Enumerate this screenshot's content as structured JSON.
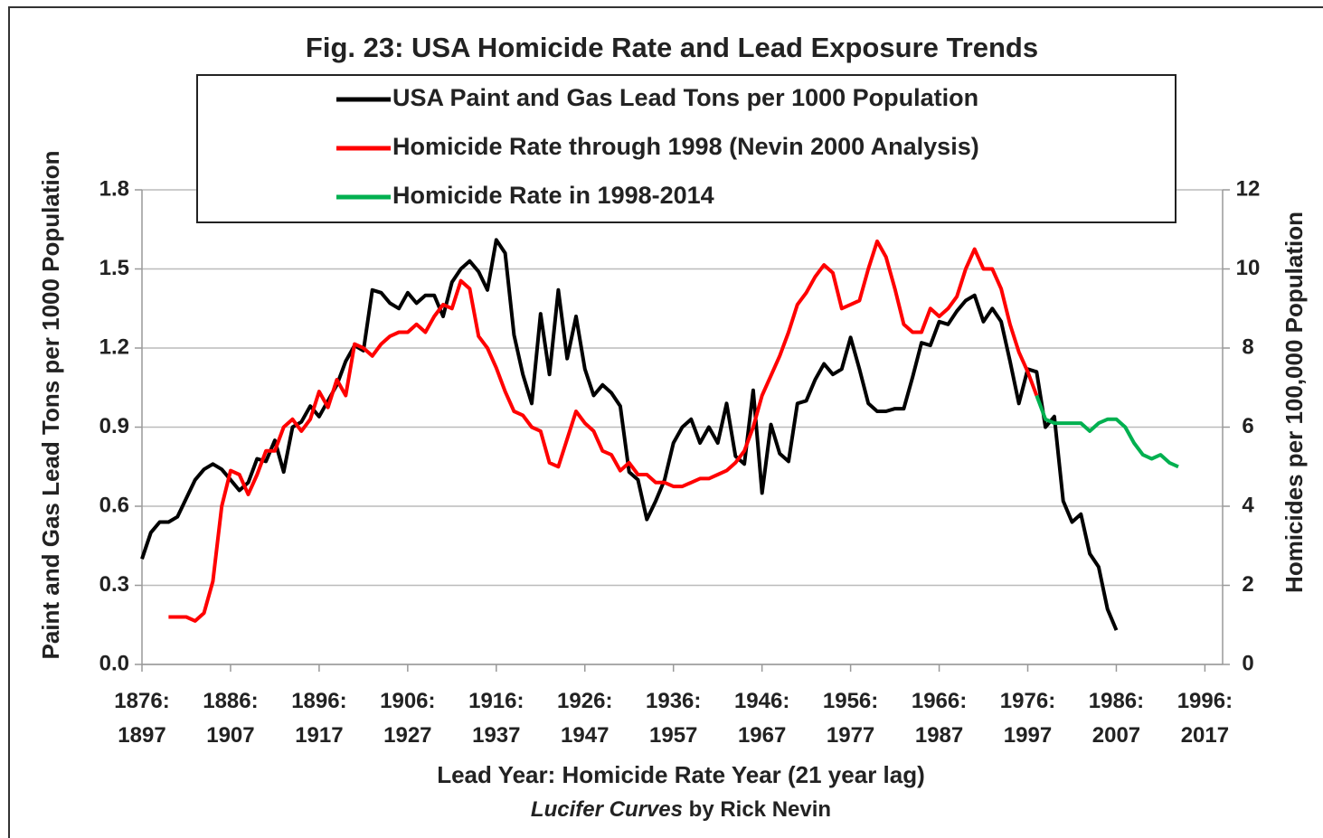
{
  "chart_data": {
    "type": "line",
    "title": "Fig. 23: USA Homicide Rate and Lead Exposure Trends",
    "xlabel": "Lead Year: Homicide Rate Year (21 year lag)",
    "credit_title": "Lucifer Curves",
    "credit": "by Rick Nevin",
    "ylabel": "Paint and Gas Lead Tons per 1000 Population",
    "y2label": "Homicides per 100,000 Population",
    "xlim": [
      1876,
      1998
    ],
    "xticks": [
      {
        "value": 1876,
        "label": "1876:\n1897"
      },
      {
        "value": 1886,
        "label": "1886:\n1907"
      },
      {
        "value": 1896,
        "label": "1896:\n1917"
      },
      {
        "value": 1906,
        "label": "1906:\n1927"
      },
      {
        "value": 1916,
        "label": "1916:\n1937"
      },
      {
        "value": 1926,
        "label": "1926:\n1947"
      },
      {
        "value": 1936,
        "label": "1936:\n1957"
      },
      {
        "value": 1946,
        "label": "1946:\n1967"
      },
      {
        "value": 1956,
        "label": "1956:\n1977"
      },
      {
        "value": 1966,
        "label": "1966:\n1987"
      },
      {
        "value": 1976,
        "label": "1976:\n1997"
      },
      {
        "value": 1986,
        "label": "1986:\n2007"
      },
      {
        "value": 1996,
        "label": "1996:\n2017"
      }
    ],
    "ylim": [
      0,
      1.8
    ],
    "yticks": [
      {
        "value": 0,
        "label": "0.0"
      },
      0.3,
      0.6,
      0.9,
      1.2,
      1.5,
      1.8
    ],
    "y2lim": [
      0,
      12
    ],
    "y2ticks": [
      0,
      2,
      4,
      6,
      8,
      10,
      12
    ],
    "grid": true,
    "x": [
      1876,
      1877,
      1878,
      1879,
      1880,
      1881,
      1882,
      1883,
      1884,
      1885,
      1886,
      1887,
      1888,
      1889,
      1890,
      1891,
      1892,
      1893,
      1894,
      1895,
      1896,
      1897,
      1898,
      1899,
      1900,
      1901,
      1902,
      1903,
      1904,
      1905,
      1906,
      1907,
      1908,
      1909,
      1910,
      1911,
      1912,
      1913,
      1914,
      1915,
      1916,
      1917,
      1918,
      1919,
      1920,
      1921,
      1922,
      1923,
      1924,
      1925,
      1926,
      1927,
      1928,
      1929,
      1930,
      1931,
      1932,
      1933,
      1934,
      1935,
      1936,
      1937,
      1938,
      1939,
      1940,
      1941,
      1942,
      1943,
      1944,
      1945,
      1946,
      1947,
      1948,
      1949,
      1950,
      1951,
      1952,
      1953,
      1954,
      1955,
      1956,
      1957,
      1958,
      1959,
      1960,
      1961,
      1962,
      1963,
      1964,
      1965,
      1966,
      1967,
      1968,
      1969,
      1970,
      1971,
      1972,
      1973,
      1974,
      1975,
      1976,
      1977,
      1978,
      1979,
      1980,
      1981,
      1982,
      1983,
      1984,
      1985,
      1986,
      1987,
      1988,
      1989,
      1990,
      1991,
      1992,
      1993
    ],
    "series": [
      {
        "name": "USA Paint and Gas Lead Tons per 1000 Population",
        "color": "#000000",
        "axis": "y",
        "values": [
          0.4,
          0.5,
          0.54,
          0.54,
          0.56,
          0.63,
          0.7,
          0.74,
          0.76,
          0.74,
          0.7,
          0.66,
          0.69,
          0.78,
          0.77,
          0.85,
          0.73,
          0.9,
          0.92,
          0.98,
          0.94,
          1.0,
          1.06,
          1.15,
          1.21,
          1.19,
          1.42,
          1.41,
          1.37,
          1.35,
          1.41,
          1.37,
          1.4,
          1.4,
          1.32,
          1.45,
          1.5,
          1.53,
          1.49,
          1.42,
          1.61,
          1.56,
          1.25,
          1.1,
          0.99,
          1.33,
          1.1,
          1.42,
          1.16,
          1.32,
          1.12,
          1.02,
          1.06,
          1.03,
          0.98,
          0.73,
          0.7,
          0.55,
          0.62,
          0.7,
          0.84,
          0.9,
          0.93,
          0.84,
          0.9,
          0.84,
          0.99,
          0.79,
          0.76,
          1.04,
          0.65,
          0.91,
          0.8,
          0.77,
          0.99,
          1.0,
          1.08,
          1.14,
          1.1,
          1.12,
          1.24,
          1.12,
          0.99,
          0.96,
          0.96,
          0.97,
          0.97,
          1.09,
          1.22,
          1.21,
          1.3,
          1.29,
          1.34,
          1.38,
          1.4,
          1.3,
          1.35,
          1.3,
          1.15,
          0.99,
          1.12,
          1.11,
          0.9,
          0.94,
          0.62,
          0.54,
          0.57,
          0.42,
          0.37,
          0.21,
          0.13,
          null,
          null,
          null,
          null,
          null,
          null,
          null
        ]
      },
      {
        "name": "Homicide Rate through 1998 (Nevin 2000 Analysis)",
        "color": "#ff0000",
        "axis": "y2",
        "values": [
          null,
          null,
          null,
          1.2,
          1.2,
          1.2,
          1.1,
          1.3,
          2.1,
          4.0,
          4.9,
          4.8,
          4.3,
          4.8,
          5.4,
          5.4,
          6.0,
          6.2,
          5.9,
          6.2,
          6.9,
          6.5,
          7.2,
          6.8,
          8.1,
          8.0,
          7.8,
          8.1,
          8.3,
          8.4,
          8.4,
          8.6,
          8.4,
          8.8,
          9.1,
          9.0,
          9.7,
          9.5,
          8.3,
          8.0,
          7.5,
          6.9,
          6.4,
          6.3,
          6.0,
          5.9,
          5.1,
          5.0,
          5.7,
          6.4,
          6.1,
          5.9,
          5.4,
          5.3,
          4.9,
          5.1,
          4.8,
          4.8,
          4.6,
          4.6,
          4.5,
          4.5,
          4.6,
          4.7,
          4.7,
          4.8,
          4.9,
          5.1,
          5.4,
          6.0,
          6.8,
          7.3,
          7.8,
          8.4,
          9.1,
          9.4,
          9.8,
          10.1,
          9.9,
          9.0,
          9.1,
          9.2,
          10.0,
          10.7,
          10.3,
          9.5,
          8.6,
          8.4,
          8.4,
          9.0,
          8.8,
          9.0,
          9.3,
          10.0,
          10.5,
          10.0,
          10.0,
          9.5,
          8.6,
          7.9,
          7.4,
          6.8,
          null,
          null,
          null,
          null,
          null,
          null,
          null,
          null,
          null,
          null,
          null,
          null,
          null,
          null,
          null,
          null
        ]
      },
      {
        "name": "Homicide Rate in 1998-2014",
        "color": "#00b050",
        "axis": "y2",
        "values": [
          null,
          null,
          null,
          null,
          null,
          null,
          null,
          null,
          null,
          null,
          null,
          null,
          null,
          null,
          null,
          null,
          null,
          null,
          null,
          null,
          null,
          null,
          null,
          null,
          null,
          null,
          null,
          null,
          null,
          null,
          null,
          null,
          null,
          null,
          null,
          null,
          null,
          null,
          null,
          null,
          null,
          null,
          null,
          null,
          null,
          null,
          null,
          null,
          null,
          null,
          null,
          null,
          null,
          null,
          null,
          null,
          null,
          null,
          null,
          null,
          null,
          null,
          null,
          null,
          null,
          null,
          null,
          null,
          null,
          null,
          null,
          null,
          null,
          null,
          null,
          null,
          null,
          null,
          null,
          null,
          null,
          null,
          null,
          null,
          null,
          null,
          null,
          null,
          null,
          null,
          null,
          null,
          null,
          null,
          null,
          null,
          null,
          null,
          null,
          null,
          null,
          6.8,
          6.2,
          6.1,
          6.1,
          6.1,
          6.1,
          5.9,
          6.1,
          6.2,
          6.2,
          6.0,
          5.6,
          5.3,
          5.2,
          5.3,
          5.1,
          5.0
        ]
      }
    ]
  }
}
